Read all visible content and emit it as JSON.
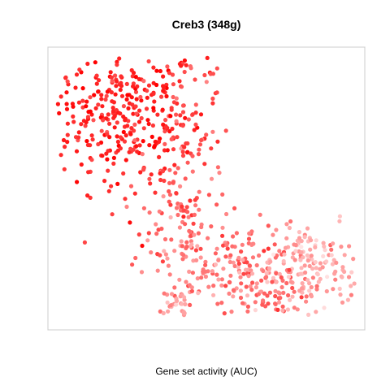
{
  "chart_data": {
    "type": "scatter",
    "title": "Creb3 (348g)",
    "xlabel": "Gene set activity (AUC)",
    "ylabel": "",
    "grid": false,
    "legend": "none",
    "axes_visible": false,
    "frame_color": "#cccccc",
    "color_scale": {
      "low": "#ffe6e6",
      "high": "#ff0000",
      "variable": "AUC"
    },
    "xlim": [
      0,
      100
    ],
    "ylim": [
      0,
      100
    ],
    "point_groups": [
      {
        "name": "",
        "cx": 24,
        "cy": 75,
        "sx": 12,
        "sy": 13,
        "n": 330,
        "auc_mean": 0.85,
        "auc_sd": 0.1
      },
      {
        "name": "",
        "cx": 42,
        "cy": 72,
        "sx": 7,
        "sy": 14,
        "n": 90,
        "auc_mean": 0.62,
        "auc_sd": 0.12
      },
      {
        "name": "",
        "cx": 42,
        "cy": 40,
        "sx": 6,
        "sy": 10,
        "n": 70,
        "auc_mean": 0.58,
        "auc_sd": 0.12
      },
      {
        "name": "",
        "cx": 58,
        "cy": 22,
        "sx": 14,
        "sy": 8,
        "n": 200,
        "auc_mean": 0.45,
        "auc_sd": 0.15
      },
      {
        "name": "",
        "cx": 83,
        "cy": 22,
        "sx": 8,
        "sy": 7,
        "n": 140,
        "auc_mean": 0.25,
        "auc_sd": 0.1
      },
      {
        "name": "",
        "cx": 68,
        "cy": 12,
        "sx": 5,
        "sy": 4,
        "n": 40,
        "auc_mean": 0.6,
        "auc_sd": 0.1
      },
      {
        "name": "",
        "cx": 40,
        "cy": 10,
        "sx": 3,
        "sy": 3,
        "n": 30,
        "auc_mean": 0.3,
        "auc_sd": 0.1
      }
    ]
  }
}
